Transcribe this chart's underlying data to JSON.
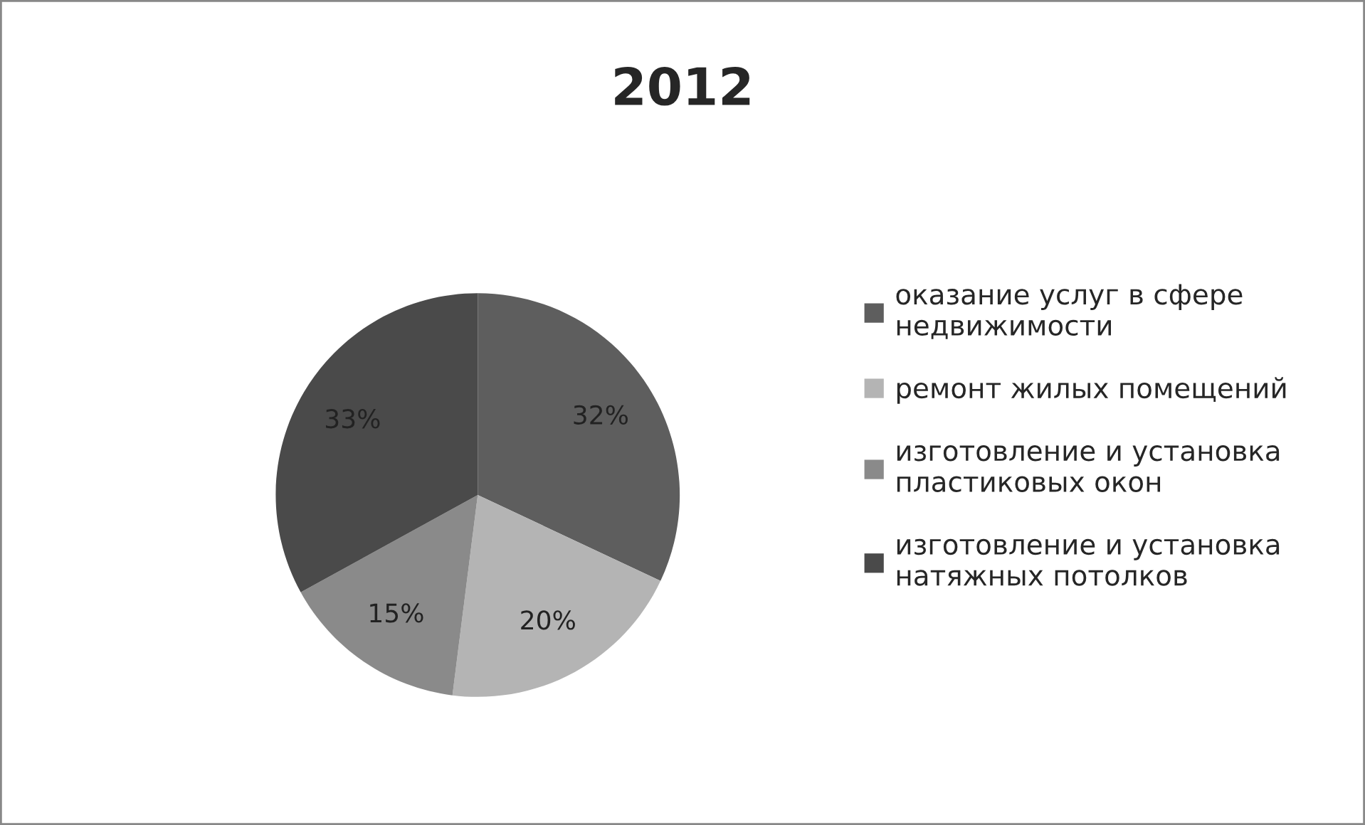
{
  "chart_data": {
    "type": "pie",
    "title": "2012",
    "categories": [
      "оказание услуг в сфере недвижимости",
      "ремонт жилых помещений",
      "изготовление и установка пластиковых окон",
      "изготовление и установка натяжных потолков"
    ],
    "values": [
      32,
      20,
      15,
      33
    ],
    "colors": [
      "#5e5e5e",
      "#b4b4b4",
      "#8a8a8a",
      "#4a4a4a"
    ],
    "value_labels": [
      "32%",
      "20%",
      "15%",
      "33%"
    ],
    "legend": "right"
  }
}
